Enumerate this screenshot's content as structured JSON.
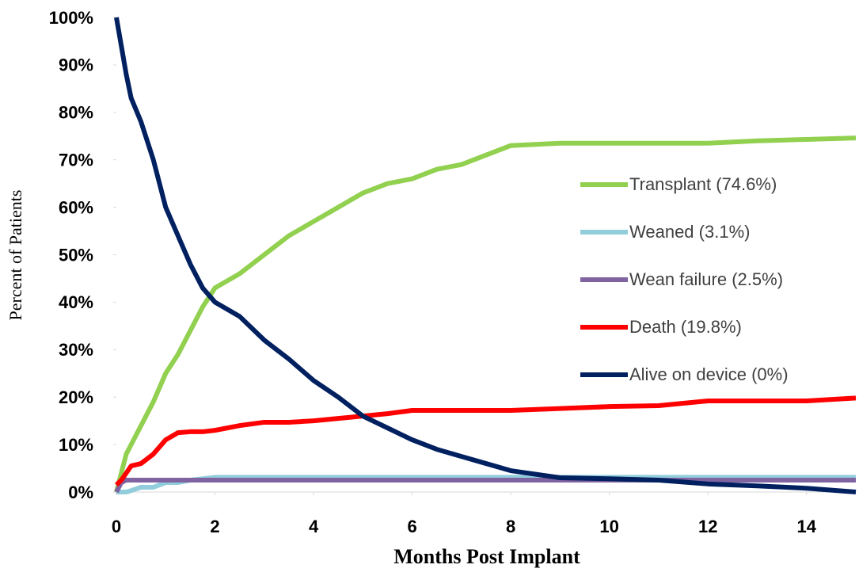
{
  "chart_data": {
    "type": "line",
    "x_label": "Months Post Implant",
    "y_label": "Percent of Patients",
    "x": [
      0,
      0.1,
      0.2,
      0.3,
      0.5,
      0.75,
      1,
      1.25,
      1.5,
      1.75,
      2,
      2.5,
      3,
      3.5,
      4,
      4.5,
      5,
      5.5,
      6,
      6.5,
      7,
      7.5,
      8,
      9,
      10,
      11,
      12,
      13,
      14,
      15
    ],
    "xlim": [
      0,
      15
    ],
    "xticks": [
      0,
      2,
      4,
      6,
      8,
      10,
      12,
      14
    ],
    "ylim": [
      0,
      100
    ],
    "yticks": [
      {
        "value": 0,
        "label": "0%"
      },
      {
        "value": 10,
        "label": "10%"
      },
      {
        "value": 20,
        "label": "20%"
      },
      {
        "value": 30,
        "label": "30%"
      },
      {
        "value": 40,
        "label": "40%"
      },
      {
        "value": 50,
        "label": "50%"
      },
      {
        "value": 60,
        "label": "60%"
      },
      {
        "value": 70,
        "label": "70%"
      },
      {
        "value": 80,
        "label": "80%"
      },
      {
        "value": 90,
        "label": "90%"
      },
      {
        "value": 100,
        "label": "100%"
      }
    ],
    "legend": "right",
    "series": [
      {
        "name": "Transplant (74.6%)",
        "color": "#92d050",
        "values": [
          0,
          4,
          8,
          10,
          14,
          19,
          25,
          29,
          34,
          39,
          43,
          46,
          50,
          54,
          57,
          60,
          63,
          65,
          66,
          68,
          69,
          71,
          73,
          73.5,
          73.5,
          73.5,
          73.5,
          74,
          74.3,
          74.6
        ]
      },
      {
        "name": "Weaned (3.1%)",
        "color": "#92cddc",
        "values": [
          0,
          0,
          0,
          0.3,
          1,
          1,
          2,
          2,
          2.5,
          2.8,
          3.1,
          3.1,
          3.1,
          3.1,
          3.1,
          3.1,
          3.1,
          3.1,
          3.1,
          3.1,
          3.1,
          3.1,
          3.1,
          3.1,
          3.1,
          3.1,
          3.1,
          3.1,
          3.1,
          3.1
        ]
      },
      {
        "name": "Wean failure (2.5%)",
        "color": "#8064a2",
        "values": [
          0,
          2,
          2.5,
          2.5,
          2.5,
          2.5,
          2.5,
          2.5,
          2.5,
          2.5,
          2.5,
          2.5,
          2.5,
          2.5,
          2.5,
          2.5,
          2.5,
          2.5,
          2.5,
          2.5,
          2.5,
          2.5,
          2.5,
          2.5,
          2.5,
          2.5,
          2.5,
          2.5,
          2.5,
          2.5
        ]
      },
      {
        "name": "Death (19.8%)",
        "color": "#ff0000",
        "values": [
          1.5,
          2.5,
          4,
          5.5,
          6,
          8,
          11,
          12.5,
          12.7,
          12.7,
          13,
          14,
          14.7,
          14.7,
          15,
          15.5,
          16,
          16.5,
          17.2,
          17.2,
          17.2,
          17.2,
          17.2,
          17.6,
          18,
          18.2,
          19.2,
          19.2,
          19.2,
          19.8
        ]
      },
      {
        "name": "Alive on device (0%)",
        "color": "#002060",
        "values": [
          100,
          94,
          88,
          83,
          78,
          70,
          60,
          54,
          48,
          43,
          40,
          37,
          32,
          28,
          23.5,
          20,
          16,
          13.5,
          11,
          9,
          7.5,
          6,
          4.5,
          3,
          2.8,
          2.5,
          1.7,
          1.3,
          0.8,
          0
        ]
      }
    ]
  }
}
